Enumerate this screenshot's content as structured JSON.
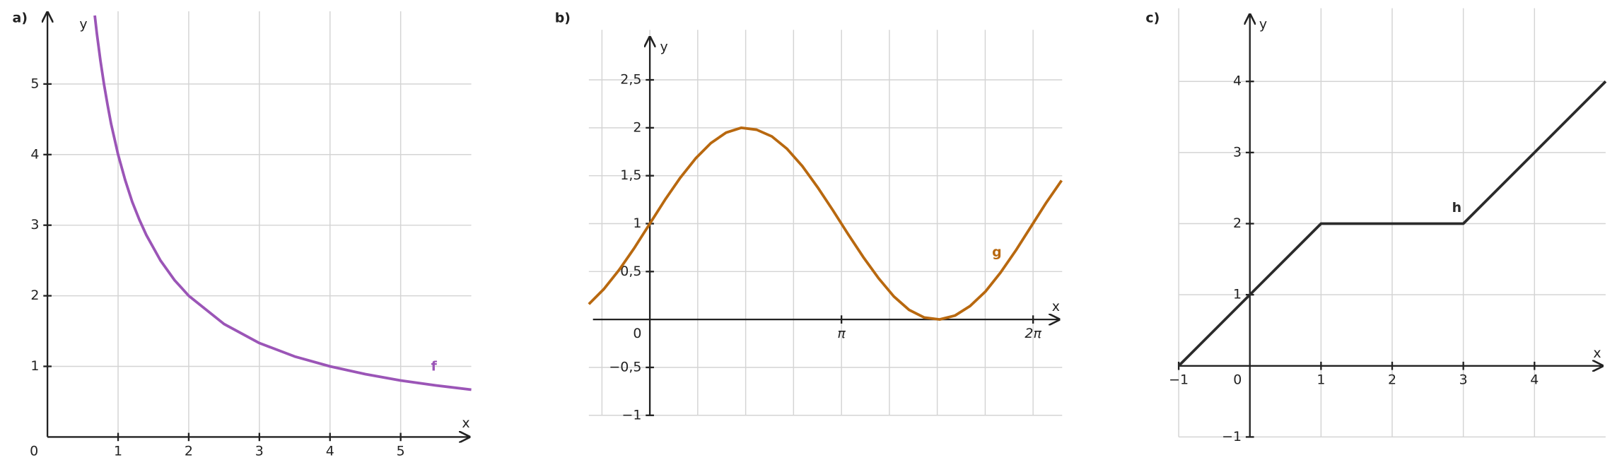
{
  "chart_data": [
    {
      "type": "line",
      "panel": "a)",
      "xlabel": "x",
      "ylabel": "y",
      "origin_label": "0",
      "xlim": [
        0,
        6
      ],
      "ylim": [
        0,
        6
      ],
      "xticks": [
        1,
        2,
        3,
        4,
        5
      ],
      "yticks": [
        1,
        2,
        3,
        4,
        5
      ],
      "grid": true,
      "x": [
        0.67,
        0.7,
        0.75,
        0.8,
        0.85,
        0.9,
        1,
        1.1,
        1.2,
        1.3,
        1.4,
        1.6,
        1.8,
        2,
        2.5,
        3,
        3.5,
        4,
        4.5,
        5,
        5.5,
        6
      ],
      "series": [
        {
          "name": "f",
          "color": "#9b55b7",
          "values": [
            5.97,
            5.71,
            5.33,
            5,
            4.71,
            4.44,
            4,
            3.64,
            3.33,
            3.08,
            2.86,
            2.5,
            2.22,
            2,
            1.6,
            1.33,
            1.14,
            1,
            0.89,
            0.8,
            0.73,
            0.67
          ]
        }
      ]
    },
    {
      "type": "line",
      "panel": "b)",
      "xlabel": "x",
      "ylabel": "y",
      "origin_label": "0",
      "xlim": [
        -1,
        6.76
      ],
      "ylim": [
        -1,
        3
      ],
      "xticks": [
        {
          "value": 3.14159,
          "label": "π"
        },
        {
          "value": 6.28319,
          "label": "2π"
        }
      ],
      "yticks": [
        {
          "value": -1,
          "label": "−1"
        },
        {
          "value": -0.5,
          "label": "−0,5"
        },
        {
          "value": 0.5,
          "label": "0,5"
        },
        1,
        {
          "value": 1.5,
          "label": "1,5"
        },
        2,
        {
          "value": 2.5,
          "label": "2,5"
        }
      ],
      "xgrid": [
        -0.785,
        0,
        0.785,
        1.571,
        2.356,
        3.142,
        3.927,
        4.712,
        5.498,
        6.283
      ],
      "grid": true,
      "x": [
        -1,
        -0.75,
        -0.5,
        -0.25,
        0,
        0.25,
        0.5,
        0.75,
        1,
        1.25,
        1.5,
        1.75,
        2,
        2.25,
        2.5,
        2.75,
        3,
        3.25,
        3.5,
        3.75,
        4,
        4.25,
        4.5,
        4.75,
        5,
        5.25,
        5.5,
        5.75,
        6,
        6.25,
        6.5,
        6.75
      ],
      "series": [
        {
          "name": "g",
          "color": "#b8680f",
          "values": [
            0.16,
            0.32,
            0.52,
            0.75,
            1,
            1.25,
            1.48,
            1.68,
            1.84,
            1.95,
            2,
            1.98,
            1.91,
            1.78,
            1.6,
            1.38,
            1.14,
            0.89,
            0.65,
            0.43,
            0.24,
            0.1,
            0.02,
            0,
            0.04,
            0.14,
            0.29,
            0.49,
            0.72,
            0.97,
            1.22,
            1.45
          ]
        }
      ]
    },
    {
      "type": "line",
      "panel": "c)",
      "xlabel": "x",
      "ylabel": "y",
      "origin_label": "0",
      "xlim": [
        -1,
        5
      ],
      "ylim": [
        -1,
        5
      ],
      "xticks": [
        {
          "value": -1,
          "label": "−1"
        },
        1,
        2,
        3,
        4
      ],
      "yticks": [
        {
          "value": -1,
          "label": "−1"
        },
        1,
        2,
        3,
        4
      ],
      "grid": true,
      "x": [
        -1,
        1,
        3,
        5
      ],
      "series": [
        {
          "name": "h",
          "color": "#2b2b2b",
          "values": [
            0,
            2,
            2,
            4
          ]
        }
      ]
    }
  ]
}
